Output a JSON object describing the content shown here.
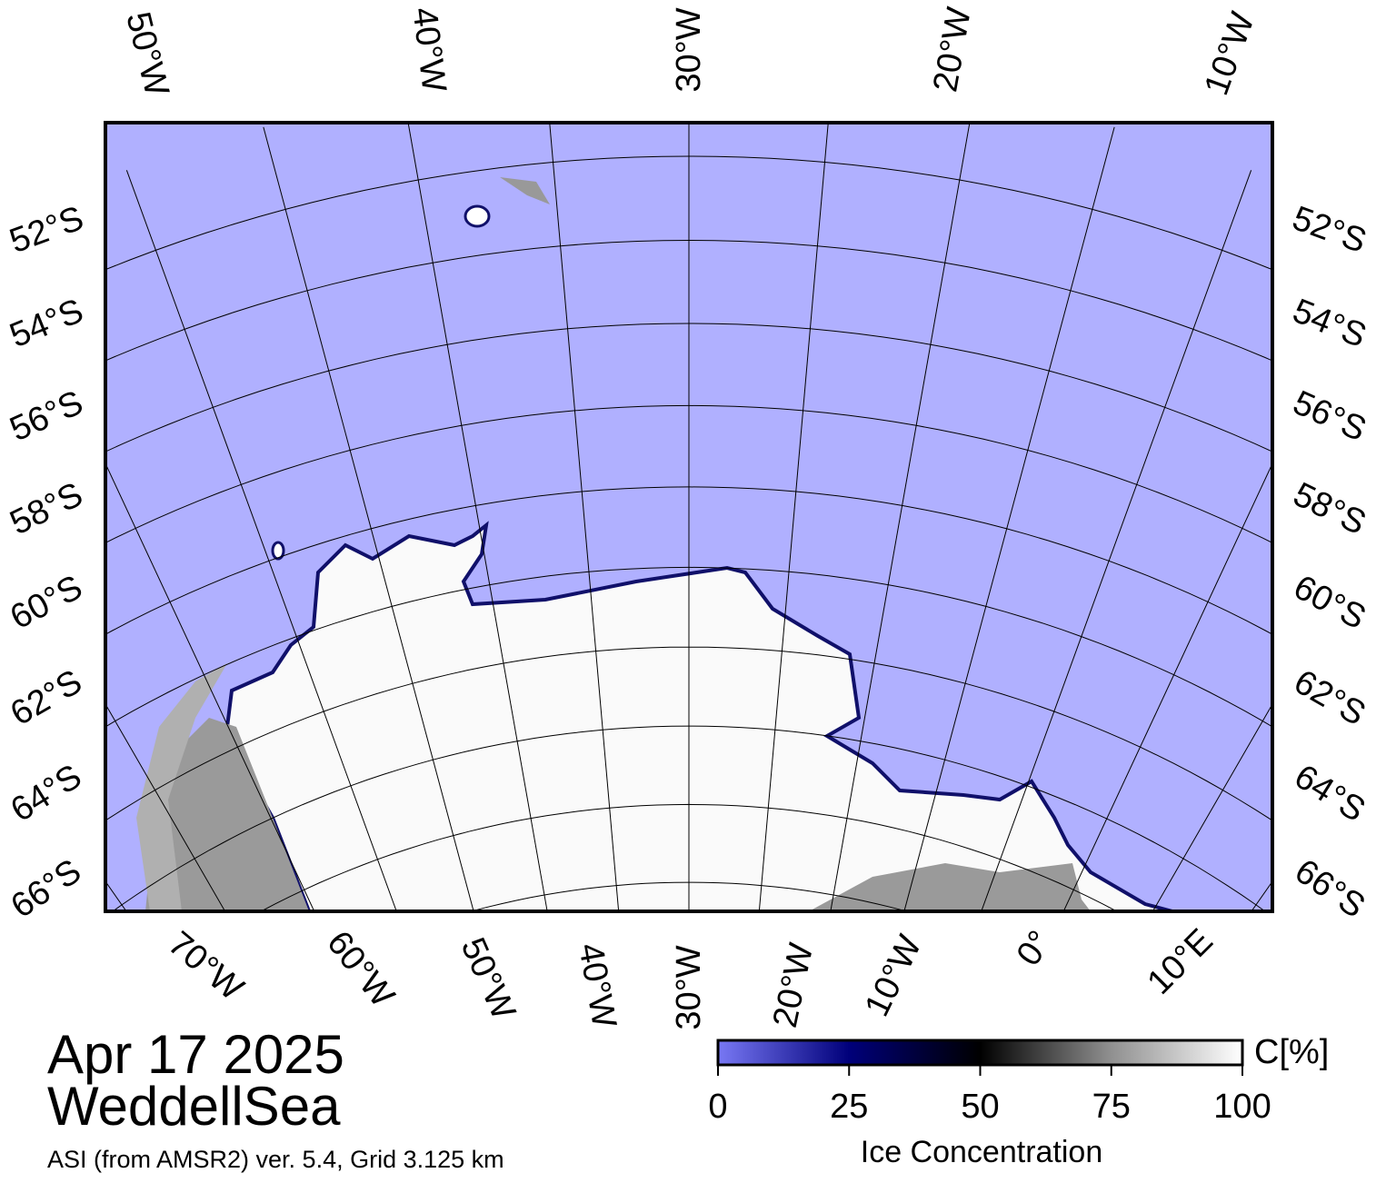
{
  "map": {
    "top_labels": [
      "50°W",
      "40°W",
      "30°W",
      "20°W",
      "10°W"
    ],
    "left_labels": [
      "52°S",
      "54°S",
      "56°S",
      "58°S",
      "60°S",
      "62°S",
      "64°S",
      "66°S"
    ],
    "right_labels": [
      "52°S",
      "54°S",
      "56°S",
      "58°S",
      "60°S",
      "62°S",
      "64°S",
      "66°S"
    ],
    "bottom_labels": [
      "70°W",
      "60°W",
      "50°W",
      "40°W",
      "30°W",
      "20°W",
      "10°W",
      "0°",
      "10°E"
    ]
  },
  "date": "Apr 17 2025",
  "region": "WeddellSea",
  "source": "ASI (from AMSR2) ver. 5.4,  Grid 3.125 km",
  "colorbar": {
    "range": [
      0,
      100
    ],
    "ticks": [
      0,
      25,
      50,
      75,
      100
    ],
    "unit": "C[%]",
    "label": "Ice Concentration"
  }
}
